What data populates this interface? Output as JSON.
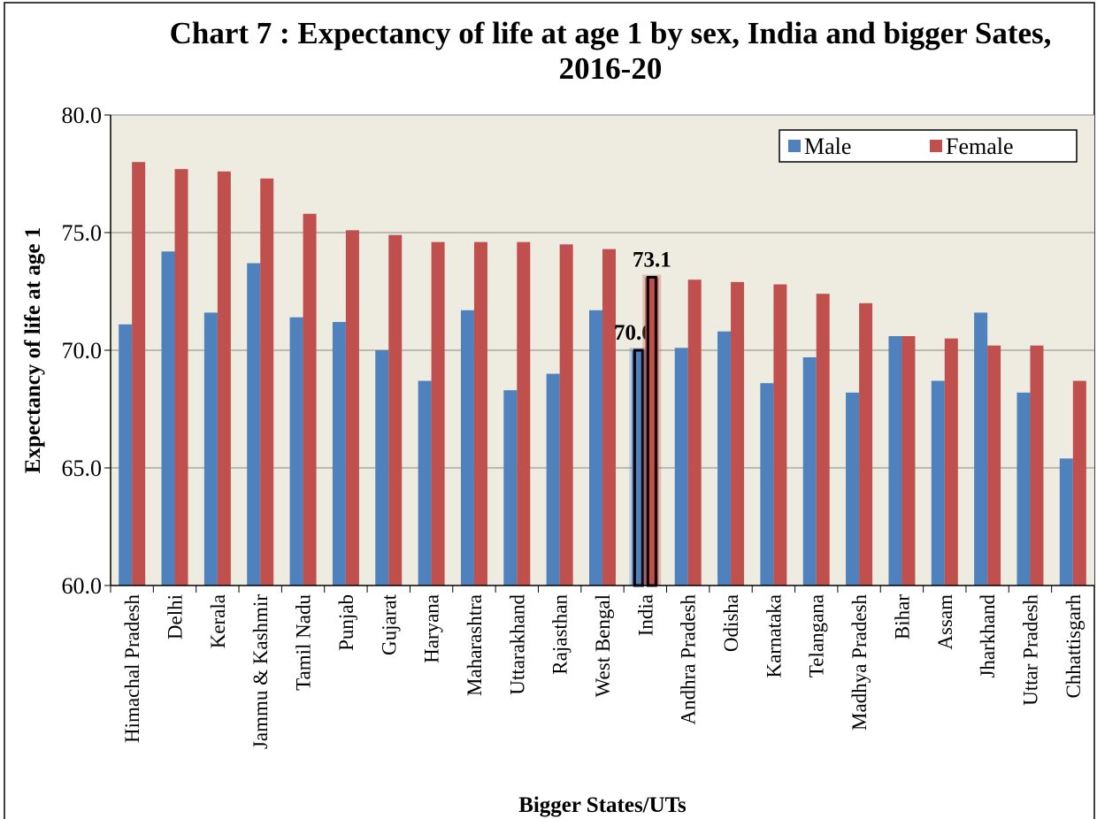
{
  "chart_data": {
    "type": "bar",
    "title": "Chart 7 : Expectancy of life at age 1 by sex, India and bigger Sates, 2016-20",
    "x_label": "Bigger States/UTs",
    "y_label": "Expectancy of life at age 1",
    "categories": [
      "Himachal Pradesh",
      "Delhi",
      "Kerala",
      "Jammu & Kashmir",
      "Tamil Nadu",
      "Punjab",
      "Gujarat",
      "Haryana",
      "Maharashtra",
      "Uttarakhand",
      "Rajasthan",
      "West Bengal",
      "India",
      "Andhra Pradesh",
      "Odisha",
      "Karnataka",
      "Telangana",
      "Madhya Pradesh",
      "Bihar",
      "Assam",
      "Jharkhand",
      "Uttar Pradesh",
      "Chhattisgarh"
    ],
    "series": [
      {
        "name": "Male",
        "color": "#4f81bd",
        "values": [
          71.1,
          74.2,
          71.6,
          73.7,
          71.4,
          71.2,
          70.0,
          68.7,
          71.7,
          68.3,
          69.0,
          71.7,
          70.0,
          70.1,
          70.8,
          68.6,
          69.7,
          68.2,
          70.6,
          68.7,
          71.6,
          68.2,
          65.4
        ],
        "value_labels": [
          null,
          null,
          null,
          null,
          null,
          null,
          null,
          null,
          null,
          null,
          null,
          null,
          "70.0",
          null,
          null,
          null,
          null,
          null,
          null,
          null,
          null,
          null,
          null
        ]
      },
      {
        "name": "Female",
        "color": "#c0504d",
        "values": [
          78.0,
          77.7,
          77.6,
          77.3,
          75.8,
          75.1,
          74.9,
          74.6,
          74.6,
          74.6,
          74.5,
          74.3,
          73.1,
          73.0,
          72.9,
          72.8,
          72.4,
          72.0,
          70.6,
          70.5,
          70.2,
          70.2,
          68.7
        ],
        "value_labels": [
          null,
          null,
          null,
          null,
          null,
          null,
          null,
          null,
          null,
          null,
          null,
          null,
          "73.1",
          null,
          null,
          null,
          null,
          null,
          null,
          null,
          null,
          null,
          null
        ]
      }
    ],
    "ylim": [
      60,
      80
    ],
    "yticks": [
      {
        "value": 60,
        "label": "60.0"
      },
      {
        "value": 65,
        "label": "65.0"
      },
      {
        "value": 70,
        "label": "70.0"
      },
      {
        "value": 75,
        "label": "75.0"
      },
      {
        "value": 80,
        "label": "80.0"
      }
    ],
    "grid": true,
    "legend": "upper right"
  }
}
